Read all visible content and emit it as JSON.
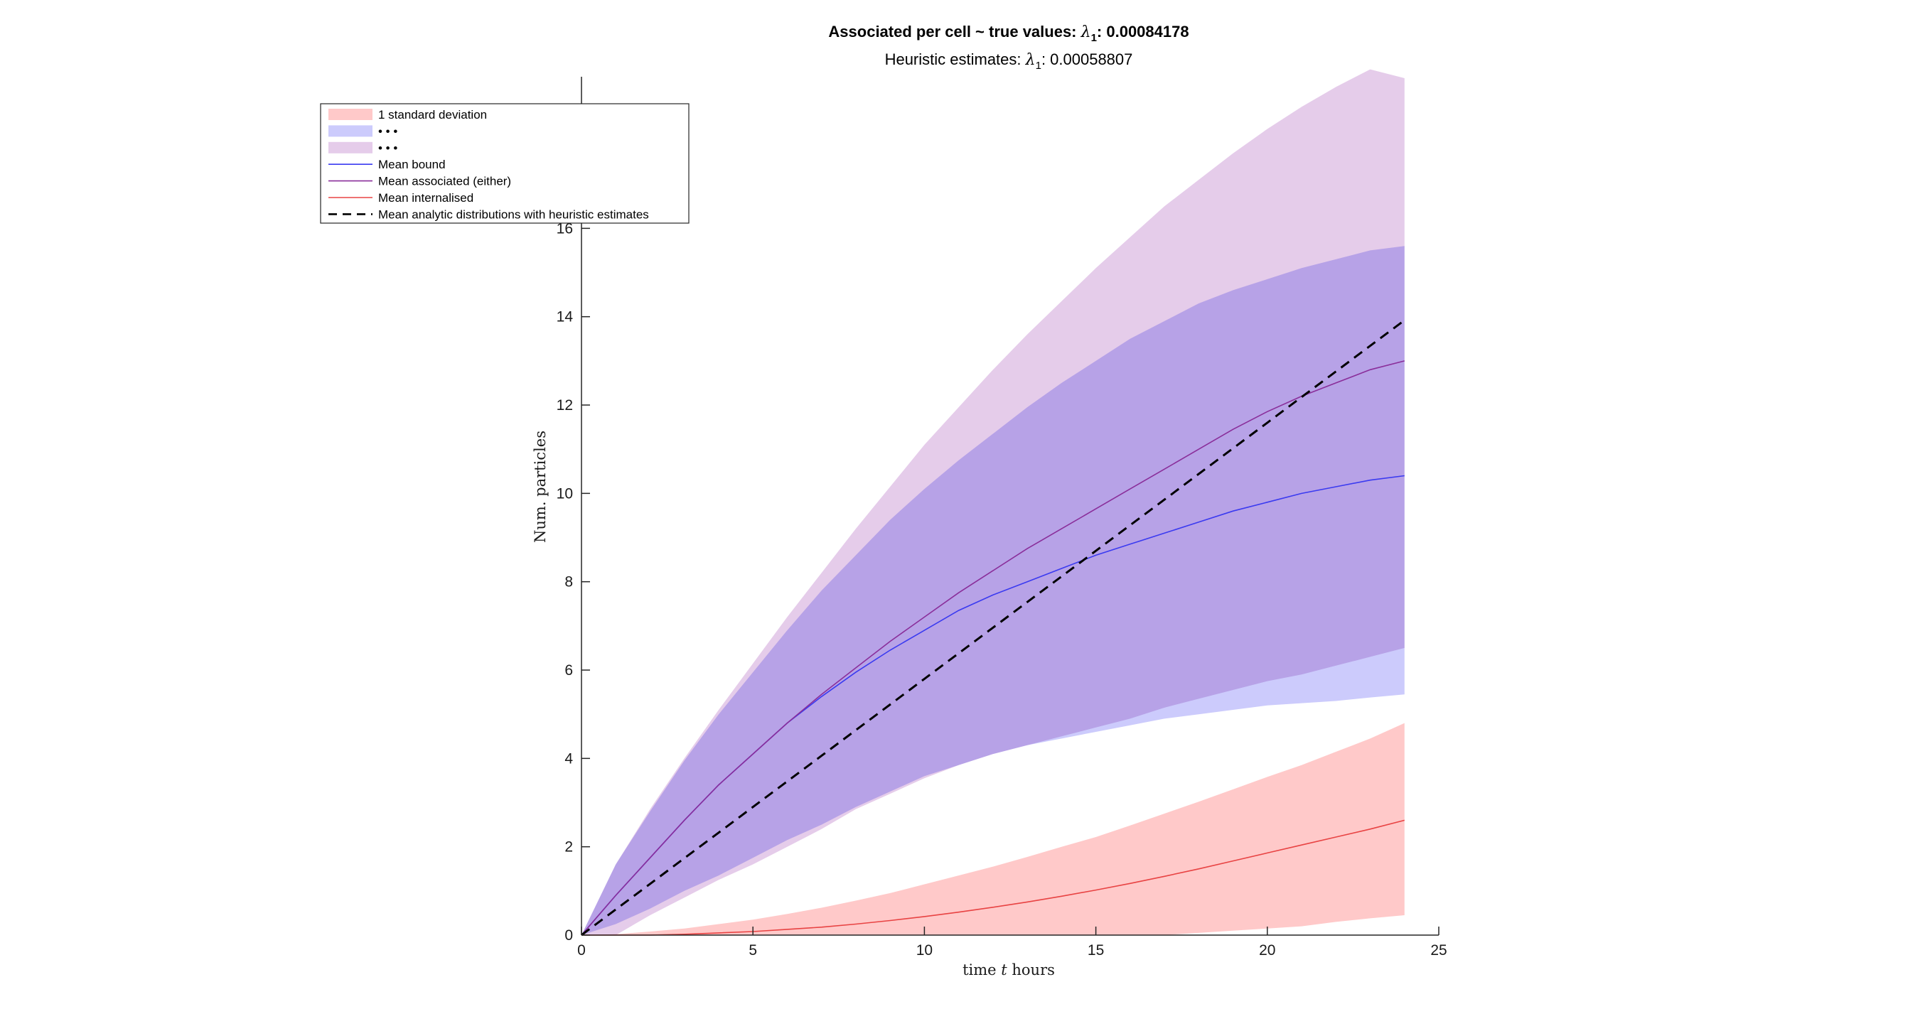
{
  "chart_data": {
    "type": "area",
    "title": "Associated per cell ~ true values:  λ₁: 0.00084178",
    "title_parts": {
      "prefix": "Associated per cell ~ true values:  ",
      "symbol": "λ",
      "subscript": "1",
      "value": ": 0.00084178"
    },
    "subtitle": "Heuristic estimates: λ₁: 0.00058807",
    "subtitle_parts": {
      "prefix": "Heuristic estimates: ",
      "symbol": "λ",
      "subscript": "1",
      "value": ": 0.00058807"
    },
    "xlabel": "time t hours",
    "xlabel_parts": {
      "prefix": "time ",
      "italic": "t",
      "suffix": " hours"
    },
    "ylabel": "Num. particles",
    "xlim": [
      0,
      25
    ],
    "ylim": [
      0,
      19.4
    ],
    "xticks": [
      0,
      5,
      10,
      15,
      20,
      25
    ],
    "yticks": [
      0,
      2,
      4,
      6,
      8,
      10,
      12,
      14,
      16
    ],
    "grid": false,
    "legend_position": "top-left",
    "x": [
      0,
      1,
      2,
      3,
      4,
      5,
      6,
      7,
      8,
      9,
      10,
      11,
      12,
      13,
      14,
      15,
      16,
      17,
      18,
      19,
      20,
      21,
      22,
      23,
      24
    ],
    "bands": [
      {
        "name": "1 standard deviation",
        "color": "#ffc9c9",
        "lower": [
          0,
          0,
          0,
          0,
          0,
          0,
          0,
          0,
          0,
          0,
          0,
          0,
          0,
          0,
          0,
          0,
          0,
          0,
          0.05,
          0.1,
          0.15,
          0.2,
          0.3,
          0.38,
          0.45
        ],
        "upper": [
          0,
          0.02,
          0.08,
          0.15,
          0.25,
          0.35,
          0.48,
          0.62,
          0.78,
          0.95,
          1.15,
          1.35,
          1.55,
          1.77,
          2.0,
          2.22,
          2.48,
          2.75,
          3.02,
          3.3,
          3.58,
          3.85,
          4.15,
          4.45,
          4.8
        ]
      },
      {
        "name": "• • •",
        "color": "#cccbfc",
        "lower": [
          0,
          0.25,
          0.6,
          1.0,
          1.35,
          1.75,
          2.15,
          2.5,
          2.9,
          3.25,
          3.6,
          3.85,
          4.1,
          4.3,
          4.45,
          4.6,
          4.75,
          4.9,
          5.0,
          5.1,
          5.2,
          5.25,
          5.3,
          5.38,
          5.45
        ],
        "upper": [
          0,
          1.6,
          2.8,
          3.95,
          5.0,
          5.95,
          6.9,
          7.8,
          8.6,
          9.4,
          10.1,
          10.75,
          11.35,
          11.95,
          12.5,
          13.0,
          13.5,
          13.9,
          14.3,
          14.6,
          14.85,
          15.1,
          15.3,
          15.5,
          15.6
        ]
      },
      {
        "name": "• • •",
        "color": "#e5ccea",
        "lower": [
          0,
          0.0,
          0.45,
          0.85,
          1.25,
          1.6,
          2.0,
          2.4,
          2.85,
          3.2,
          3.55,
          3.85,
          4.1,
          4.3,
          4.5,
          4.7,
          4.9,
          5.15,
          5.35,
          5.55,
          5.75,
          5.9,
          6.1,
          6.3,
          6.5
        ],
        "upper": [
          0,
          1.6,
          2.85,
          4.0,
          5.1,
          6.15,
          7.2,
          8.2,
          9.2,
          10.15,
          11.1,
          11.95,
          12.8,
          13.6,
          14.35,
          15.1,
          15.8,
          16.5,
          17.1,
          17.7,
          18.25,
          18.75,
          19.2,
          19.6,
          19.4
        ]
      }
    ],
    "series": [
      {
        "name": "Mean bound",
        "color": "#3a3af0",
        "dash": false,
        "values": [
          0,
          0.9,
          1.75,
          2.6,
          3.4,
          4.1,
          4.8,
          5.4,
          5.95,
          6.45,
          6.9,
          7.35,
          7.7,
          8.0,
          8.3,
          8.6,
          8.85,
          9.1,
          9.35,
          9.6,
          9.8,
          10.0,
          10.15,
          10.3,
          10.4
        ]
      },
      {
        "name": "Mean associated (either)",
        "color": "#8a2e9a",
        "dash": false,
        "values": [
          0,
          0.9,
          1.75,
          2.6,
          3.4,
          4.1,
          4.8,
          5.45,
          6.05,
          6.65,
          7.2,
          7.75,
          8.25,
          8.75,
          9.2,
          9.65,
          10.1,
          10.55,
          11.0,
          11.45,
          11.85,
          12.2,
          12.5,
          12.8,
          13.0
        ]
      },
      {
        "name": "Mean internalised",
        "color": "#e84343",
        "dash": false,
        "values": [
          0,
          0.0,
          0.0,
          0.02,
          0.05,
          0.08,
          0.13,
          0.18,
          0.25,
          0.33,
          0.42,
          0.52,
          0.63,
          0.75,
          0.88,
          1.02,
          1.17,
          1.33,
          1.5,
          1.68,
          1.86,
          2.04,
          2.22,
          2.4,
          2.6
        ]
      },
      {
        "name": "Mean analytic distributions with heuristic estimates",
        "color": "#000000",
        "dash": true,
        "values": [
          0,
          0.58,
          1.16,
          1.74,
          2.32,
          2.9,
          3.48,
          4.06,
          4.64,
          5.22,
          5.8,
          6.38,
          6.96,
          7.54,
          8.12,
          8.7,
          9.28,
          9.86,
          10.44,
          11.02,
          11.6,
          12.18,
          12.76,
          13.34,
          13.92
        ]
      }
    ]
  }
}
